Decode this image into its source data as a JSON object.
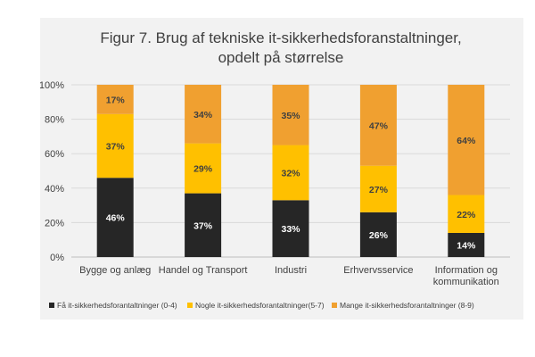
{
  "chart_data": {
    "type": "bar",
    "stacked": true,
    "title": [
      "Figur 7. Brug af tekniske it-sikkerhedsforanstaltninger,",
      "opdelt på størrelse"
    ],
    "categories": [
      [
        "Bygge og anlæg"
      ],
      [
        "Handel og Transport"
      ],
      [
        "Industri"
      ],
      [
        "Erhvervsservice"
      ],
      [
        "Information og",
        "kommunikation"
      ]
    ],
    "yticks": [
      "0%",
      "20%",
      "40%",
      "60%",
      "80%",
      "100%"
    ],
    "ylim": [
      0,
      100
    ],
    "grid": true,
    "legend_position": "bottom",
    "series": [
      {
        "name": "Få it-sikkerhedsforantaltninger (0-4)",
        "color": "#262626",
        "label_color": "#ffffff",
        "values": [
          46,
          37,
          33,
          26,
          14
        ],
        "labels": [
          "46%",
          "37%",
          "33%",
          "26%",
          "14%"
        ]
      },
      {
        "name": "Nogle it-sikkerhedsforantaltninger(5-7)",
        "color": "#ffc000",
        "label_color": "#404040",
        "values": [
          37,
          29,
          32,
          27,
          22
        ],
        "labels": [
          "37%",
          "29%",
          "32%",
          "27%",
          "22%"
        ]
      },
      {
        "name": "Mange it-sikkerhedsforantaltninger (8-9)",
        "color": "#f0a030",
        "label_color": "#404040",
        "values": [
          17,
          34,
          35,
          47,
          64
        ],
        "labels": [
          "17%",
          "34%",
          "35%",
          "47%",
          "64%"
        ]
      }
    ]
  }
}
